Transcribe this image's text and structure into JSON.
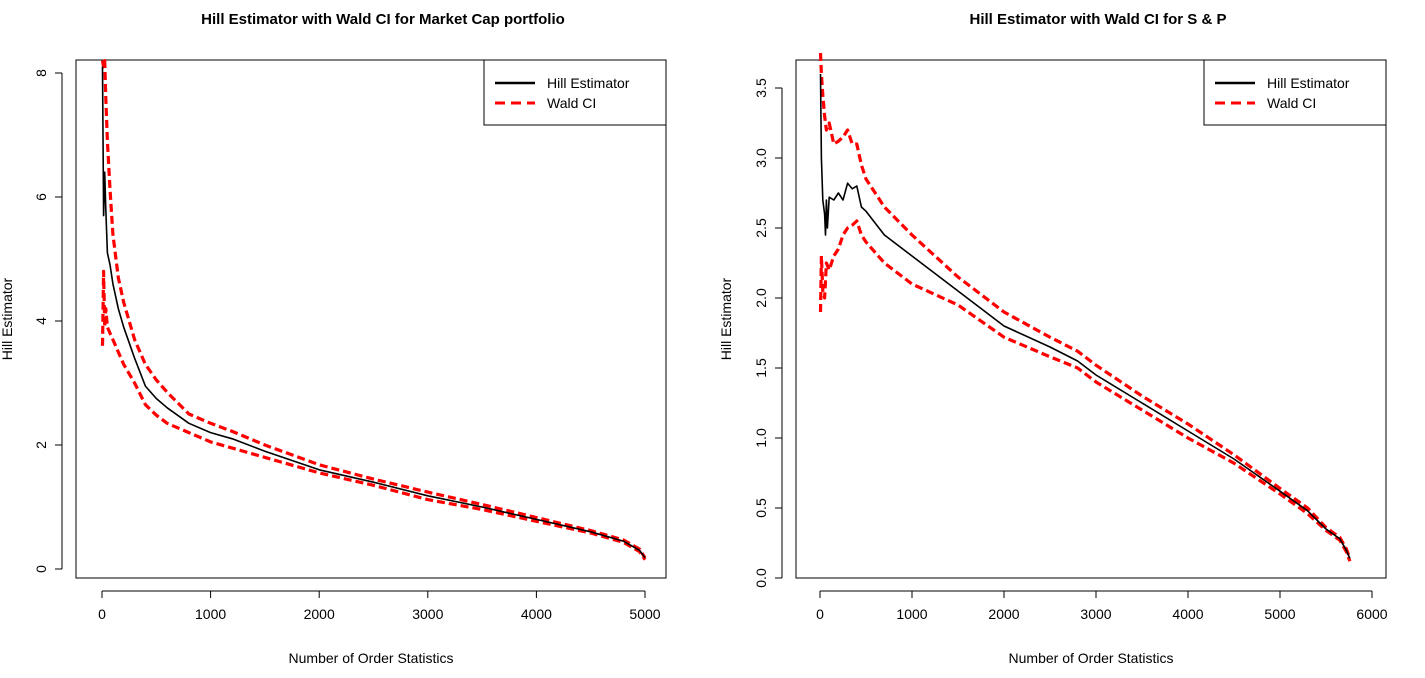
{
  "chart_data": [
    {
      "type": "line",
      "title": "Hill Estimator with Wald CI for Market Cap portfolio",
      "xlabel": "Number of Order Statistics",
      "ylabel": "Hill Estimator",
      "xlim": [
        0,
        5000
      ],
      "ylim": [
        0,
        8
      ],
      "x_ticks": [
        "0",
        "1000",
        "2000",
        "3000",
        "4000",
        "5000"
      ],
      "y_ticks": [
        "0",
        "2",
        "4",
        "6",
        "8"
      ],
      "legend": {
        "position": "top-right",
        "entries": [
          "Hill Estimator",
          "Wald CI"
        ]
      },
      "grid": false,
      "series": [
        {
          "name": "Hill Estimator",
          "color": "#000000",
          "style": "solid",
          "x": [
            5,
            15,
            25,
            35,
            50,
            75,
            100,
            150,
            200,
            300,
            400,
            500,
            600,
            800,
            1000,
            1200,
            1500,
            2000,
            2500,
            3000,
            3500,
            4000,
            4500,
            4800,
            4950,
            5000
          ],
          "y": [
            8.1,
            5.7,
            6.4,
            5.8,
            5.1,
            4.9,
            4.6,
            4.2,
            3.9,
            3.4,
            2.95,
            2.75,
            2.6,
            2.35,
            2.2,
            2.1,
            1.9,
            1.6,
            1.4,
            1.18,
            1.0,
            0.8,
            0.6,
            0.45,
            0.3,
            0.18
          ]
        },
        {
          "name": "Wald CI",
          "color": "#ff0000",
          "style": "dashed",
          "x": [
            5,
            15,
            25,
            35,
            50,
            75,
            100,
            150,
            200,
            300,
            400,
            500,
            600,
            800,
            1000,
            1200,
            1500,
            2000,
            2500,
            3000,
            3500,
            4000,
            4500,
            4800,
            4950,
            5000
          ],
          "y": [
            8.2,
            8.1,
            8.2,
            7.6,
            6.9,
            6.1,
            5.4,
            4.7,
            4.3,
            3.7,
            3.3,
            3.05,
            2.85,
            2.5,
            2.35,
            2.22,
            2.0,
            1.68,
            1.45,
            1.24,
            1.04,
            0.83,
            0.62,
            0.47,
            0.32,
            0.18
          ]
        },
        {
          "color": "#ff0000",
          "style": "dashed",
          "x": [
            5,
            15,
            25,
            35,
            50,
            75,
            100,
            150,
            200,
            300,
            400,
            500,
            600,
            800,
            1000,
            1200,
            1500,
            2000,
            2500,
            3000,
            3500,
            4000,
            4500,
            4800,
            4950,
            5000
          ],
          "y": [
            3.6,
            4.8,
            3.9,
            4.2,
            3.9,
            3.8,
            3.7,
            3.5,
            3.3,
            3.0,
            2.65,
            2.48,
            2.35,
            2.2,
            2.05,
            1.95,
            1.8,
            1.55,
            1.35,
            1.12,
            0.96,
            0.77,
            0.58,
            0.43,
            0.28,
            0.15
          ]
        }
      ]
    },
    {
      "type": "line",
      "title": "Hill Estimator with Wald CI for S & P",
      "xlabel": "Number of Order Statistics",
      "ylabel": "Hill Estimator",
      "xlim": [
        0,
        6000
      ],
      "ylim": [
        0,
        3.7
      ],
      "x_ticks": [
        "0",
        "1000",
        "2000",
        "3000",
        "4000",
        "5000",
        "6000"
      ],
      "y_ticks": [
        "0.0",
        "0.5",
        "1.0",
        "1.5",
        "2.0",
        "2.5",
        "3.0",
        "3.5"
      ],
      "legend": {
        "position": "top-right",
        "entries": [
          "Hill Estimator",
          "Wald CI"
        ]
      },
      "grid": false,
      "series": [
        {
          "name": "Hill Estimator",
          "color": "#000000",
          "style": "solid",
          "x": [
            5,
            15,
            30,
            50,
            60,
            70,
            80,
            100,
            150,
            200,
            250,
            300,
            350,
            400,
            450,
            500,
            700,
            1000,
            1500,
            2000,
            2500,
            2800,
            3000,
            3500,
            4000,
            4500,
            5000,
            5300,
            5500,
            5650,
            5720,
            5760
          ],
          "y": [
            3.6,
            3.0,
            2.7,
            2.6,
            2.45,
            2.7,
            2.5,
            2.72,
            2.7,
            2.75,
            2.7,
            2.82,
            2.78,
            2.8,
            2.65,
            2.62,
            2.45,
            2.3,
            2.05,
            1.8,
            1.65,
            1.55,
            1.45,
            1.25,
            1.05,
            0.85,
            0.62,
            0.48,
            0.35,
            0.28,
            0.2,
            0.14
          ]
        },
        {
          "name": "Wald CI",
          "color": "#ff0000",
          "style": "dashed",
          "x": [
            5,
            15,
            30,
            50,
            70,
            100,
            150,
            200,
            250,
            300,
            350,
            400,
            450,
            500,
            700,
            1000,
            1500,
            2000,
            2500,
            2800,
            3000,
            3500,
            4000,
            4500,
            5000,
            5300,
            5500,
            5650,
            5720,
            5760
          ],
          "y": [
            3.75,
            3.6,
            3.45,
            3.3,
            3.2,
            3.25,
            3.1,
            3.12,
            3.15,
            3.2,
            3.1,
            3.1,
            2.95,
            2.85,
            2.65,
            2.45,
            2.15,
            1.9,
            1.72,
            1.62,
            1.52,
            1.3,
            1.1,
            0.88,
            0.64,
            0.5,
            0.36,
            0.29,
            0.21,
            0.14
          ]
        },
        {
          "color": "#ff0000",
          "style": "dashed",
          "x": [
            5,
            15,
            30,
            50,
            70,
            100,
            150,
            200,
            250,
            300,
            350,
            400,
            450,
            500,
            700,
            1000,
            1500,
            2000,
            2500,
            2800,
            3000,
            3500,
            4000,
            4500,
            5000,
            5300,
            5500,
            5650,
            5720,
            5760
          ],
          "y": [
            1.9,
            2.3,
            2.05,
            2.0,
            2.25,
            2.2,
            2.3,
            2.35,
            2.45,
            2.5,
            2.52,
            2.55,
            2.45,
            2.4,
            2.25,
            2.1,
            1.95,
            1.72,
            1.58,
            1.5,
            1.4,
            1.2,
            1.0,
            0.82,
            0.6,
            0.46,
            0.34,
            0.27,
            0.19,
            0.12
          ]
        }
      ]
    }
  ]
}
